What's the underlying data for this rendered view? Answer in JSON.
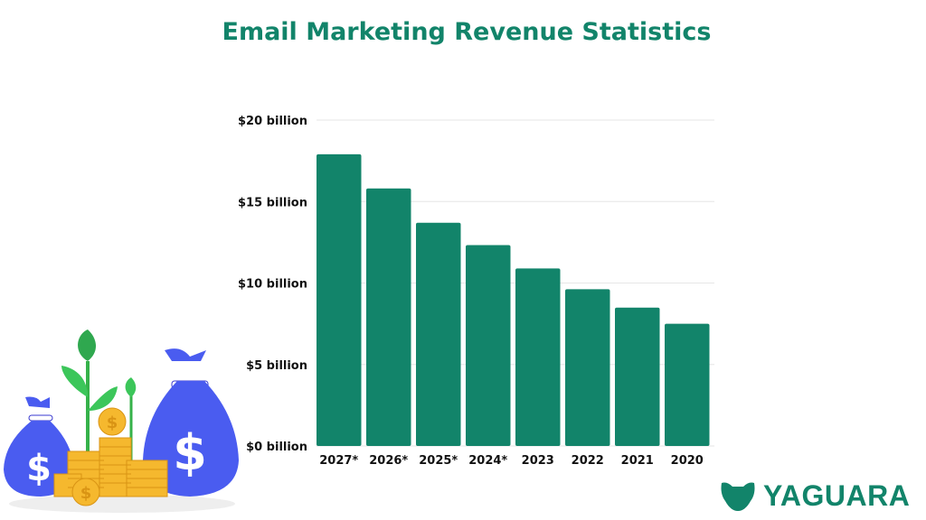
{
  "chart_data": {
    "type": "bar",
    "title": "Email Marketing Revenue Statistics",
    "categories": [
      "2027*",
      "2026*",
      "2025*",
      "2024*",
      "2023",
      "2022",
      "2021",
      "2020"
    ],
    "values": [
      17.9,
      15.8,
      13.7,
      12.33,
      10.89,
      9.62,
      8.49,
      7.5
    ],
    "unit": "billion USD",
    "ylim": [
      0,
      20
    ],
    "yticks": [
      0,
      5,
      10,
      15,
      20
    ],
    "ytick_labels": [
      "$0 billion",
      "$5 billion",
      "$10 billion",
      "$15 billion",
      "$20 billion"
    ],
    "xlabel": "",
    "ylabel": "",
    "grid": true,
    "bar_color": "#12846a"
  },
  "brand": {
    "name": "YAGUARA",
    "color": "#12846a"
  }
}
